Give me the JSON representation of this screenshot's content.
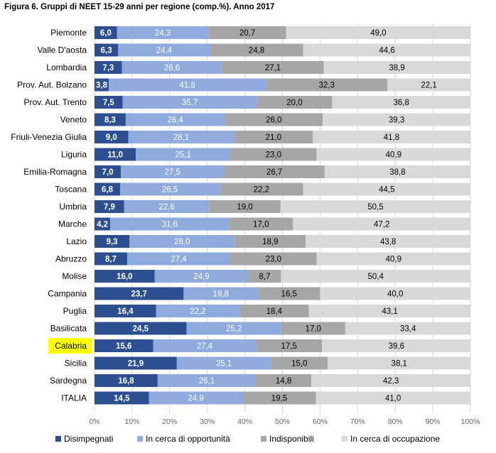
{
  "title": "Figura 6.  Gruppi di NEET 15-29 anni per regione (comp.%). Anno 2017",
  "highlighted_category": "Calabria",
  "chart_data": {
    "type": "bar",
    "orientation": "horizontal",
    "stacked": "percent",
    "title": "Figura 6.  Gruppi di NEET 15-29 anni per regione (comp.%). Anno 2017",
    "categories": [
      "Piemonte",
      "Valle D'aosta",
      "Lombardia",
      "Prov. Aut. Bolzano",
      "Prov. Aut. Trento",
      "Veneto",
      "Friuli-Venezia Giulia",
      "Liguria",
      "Emilia-Romagna",
      "Toscana",
      "Umbria",
      "Marche",
      "Lazio",
      "Abruzzo",
      "Molise",
      "Campania",
      "Puglia",
      "Basilicata",
      "Calabria",
      "Sicilia",
      "Sardegna",
      "ITALIA"
    ],
    "series": [
      {
        "name": "Disimpegnati",
        "color": "#2e4f8f",
        "values": [
          6.0,
          6.3,
          7.3,
          3.8,
          7.5,
          8.3,
          9.0,
          11.0,
          7.0,
          6.8,
          7.9,
          4.2,
          9.3,
          8.7,
          16.0,
          23.7,
          16.4,
          24.5,
          15.6,
          21.9,
          16.8,
          14.5
        ]
      },
      {
        "name": "In cerca di opportunità",
        "color": "#8faadc",
        "values": [
          24.3,
          24.4,
          26.6,
          41.8,
          35.7,
          26.4,
          28.1,
          25.1,
          27.5,
          26.5,
          22.6,
          31.6,
          28.0,
          27.4,
          24.9,
          19.8,
          22.2,
          25.2,
          27.4,
          25.1,
          26.1,
          24.9
        ]
      },
      {
        "name": "Indisponibili",
        "color": "#a6a6a6",
        "values": [
          20.7,
          24.8,
          27.1,
          32.3,
          20.0,
          26.0,
          21.0,
          23.0,
          26.7,
          22.2,
          19.0,
          17.0,
          18.9,
          23.0,
          8.7,
          16.5,
          18.4,
          17.0,
          17.5,
          15.0,
          14.8,
          19.5
        ]
      },
      {
        "name": "In cerca di occupazione",
        "color": "#d9d9d9",
        "values": [
          49.0,
          44.6,
          38.9,
          22.1,
          36.8,
          39.3,
          41.8,
          40.9,
          38.8,
          44.5,
          50.5,
          47.2,
          43.8,
          40.9,
          50.4,
          40.0,
          43.1,
          33.4,
          39.6,
          38.1,
          42.3,
          41.0
        ]
      }
    ],
    "xlim": [
      0,
      100
    ],
    "xticks": [
      "0%",
      "10%",
      "20%",
      "30%",
      "40%",
      "50%",
      "60%",
      "70%",
      "80%",
      "90%",
      "100%"
    ],
    "grid": true,
    "legend_position": "bottom"
  }
}
